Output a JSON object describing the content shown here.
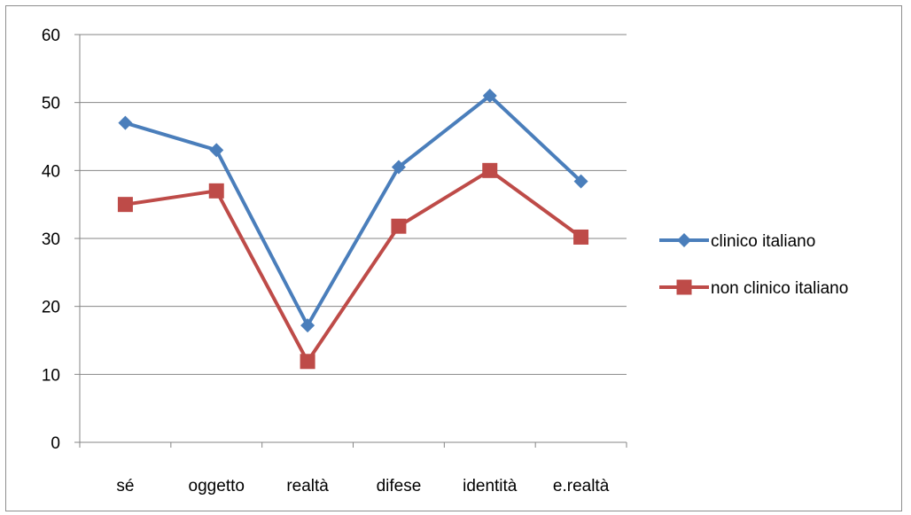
{
  "chart_data": {
    "type": "line",
    "title": "",
    "xlabel": "",
    "ylabel": "",
    "categories": [
      "sé",
      "oggetto",
      "realtà",
      "difese",
      "identità",
      "e.realtà"
    ],
    "ylim": [
      0,
      60
    ],
    "yticks": [
      0,
      10,
      20,
      30,
      40,
      50,
      60
    ],
    "grid": "horizontal",
    "legend_position": "right",
    "series": [
      {
        "name": "clinico italiano",
        "values": [
          47,
          43,
          17.2,
          40.5,
          51,
          38.4
        ],
        "color": "#4a7ebb",
        "marker": "diamond"
      },
      {
        "name": "non clinico italiano",
        "values": [
          35,
          37,
          11.9,
          31.8,
          40,
          30.2
        ],
        "color": "#be4b48",
        "marker": "square"
      }
    ]
  }
}
